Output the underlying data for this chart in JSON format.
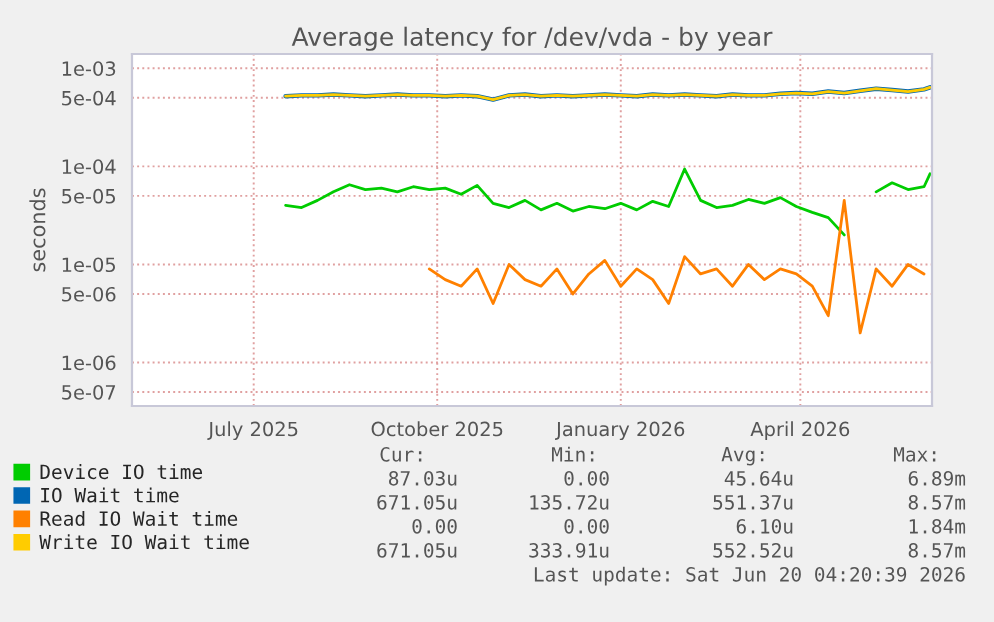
{
  "chart_data": {
    "type": "line",
    "title": "Average latency for /dev/vda - by year",
    "ylabel": "seconds",
    "x": [
      "2025-07-17",
      "2025-07-25",
      "2025-08-02",
      "2025-08-10",
      "2025-08-18",
      "2025-08-26",
      "2025-09-03",
      "2025-09-11",
      "2025-09-19",
      "2025-09-27",
      "2025-10-05",
      "2025-10-13",
      "2025-10-21",
      "2025-10-29",
      "2025-11-06",
      "2025-11-14",
      "2025-11-22",
      "2025-11-30",
      "2025-12-08",
      "2025-12-16",
      "2025-12-24",
      "2026-01-01",
      "2026-01-09",
      "2026-01-17",
      "2026-01-25",
      "2026-02-02",
      "2026-02-10",
      "2026-02-18",
      "2026-02-26",
      "2026-03-06",
      "2026-03-14",
      "2026-03-22",
      "2026-03-30",
      "2026-04-07",
      "2026-04-15",
      "2026-04-23",
      "2026-05-01",
      "2026-05-09",
      "2026-05-17",
      "2026-05-25",
      "2026-06-02",
      "2026-06-05"
    ],
    "series": [
      {
        "name": "Device IO time",
        "color": "#00cc00",
        "values": [
          4e-05,
          3.8e-05,
          4.5e-05,
          5.5e-05,
          6.5e-05,
          5.8e-05,
          6e-05,
          5.5e-05,
          6.2e-05,
          5.8e-05,
          6e-05,
          5.2e-05,
          6.4e-05,
          4.2e-05,
          3.8e-05,
          4.5e-05,
          3.6e-05,
          4.2e-05,
          3.5e-05,
          3.9e-05,
          3.7e-05,
          4.2e-05,
          3.6e-05,
          4.4e-05,
          3.9e-05,
          9.4e-05,
          4.5e-05,
          3.8e-05,
          4e-05,
          4.6e-05,
          4.2e-05,
          4.8e-05,
          3.9e-05,
          3.4e-05,
          3e-05,
          2e-05,
          null,
          5.5e-05,
          6.8e-05,
          5.8e-05,
          6.2e-05,
          8.4e-05
        ]
      },
      {
        "name": "IO Wait time",
        "color": "#0066b3",
        "values": [
          0.00052,
          0.00053,
          0.00053,
          0.00054,
          0.00053,
          0.00052,
          0.00053,
          0.00054,
          0.00053,
          0.00053,
          0.00052,
          0.00053,
          0.00052,
          0.00048,
          0.00053,
          0.00054,
          0.00052,
          0.00053,
          0.00052,
          0.00053,
          0.00054,
          0.00053,
          0.00052,
          0.00054,
          0.00053,
          0.00054,
          0.00053,
          0.00052,
          0.00054,
          0.00053,
          0.00053,
          0.00055,
          0.00056,
          0.00055,
          0.00058,
          0.00056,
          0.00059,
          0.00062,
          0.0006,
          0.00058,
          0.00061,
          0.00064
        ]
      },
      {
        "name": "Read IO Wait time",
        "color": "#ff8000",
        "values": [
          null,
          null,
          null,
          null,
          null,
          null,
          null,
          null,
          null,
          9e-06,
          7e-06,
          6e-06,
          9e-06,
          4e-06,
          1e-05,
          7e-06,
          6e-06,
          9e-06,
          5e-06,
          8e-06,
          1.1e-05,
          6e-06,
          9e-06,
          7e-06,
          4e-06,
          1.2e-05,
          8e-06,
          9e-06,
          6e-06,
          1e-05,
          7e-06,
          9e-06,
          8e-06,
          6e-06,
          3e-06,
          4.5e-05,
          2e-06,
          9e-06,
          6e-06,
          1e-05,
          8e-06,
          null
        ]
      },
      {
        "name": "Write IO Wait time",
        "color": "#ffcc00",
        "values": [
          0.00052,
          0.00053,
          0.00053,
          0.00054,
          0.00053,
          0.00052,
          0.00053,
          0.00054,
          0.00053,
          0.00053,
          0.00052,
          0.00053,
          0.00052,
          0.00048,
          0.00053,
          0.00054,
          0.00052,
          0.00053,
          0.00052,
          0.00053,
          0.00054,
          0.00053,
          0.00052,
          0.00054,
          0.00053,
          0.00054,
          0.00053,
          0.00052,
          0.00054,
          0.00053,
          0.00053,
          0.00055,
          0.00056,
          0.00055,
          0.00058,
          0.00056,
          0.00059,
          0.00062,
          0.0006,
          0.00058,
          0.00061,
          0.00064
        ]
      }
    ],
    "log": "y",
    "ylim": [
      3.6e-07,
      0.0014
    ],
    "yticks": [
      {
        "value": 5e-07,
        "label": "5e-07"
      },
      {
        "value": 1e-06,
        "label": "1e-06"
      },
      {
        "value": 5e-06,
        "label": "5e-06"
      },
      {
        "value": 1e-05,
        "label": "1e-05"
      },
      {
        "value": 5e-05,
        "label": "5e-05"
      },
      {
        "value": 0.0001,
        "label": "1e-04"
      },
      {
        "value": 0.0005,
        "label": "5e-04"
      },
      {
        "value": 0.001,
        "label": "1e-03"
      }
    ],
    "xlim": [
      "2025-05-01",
      "2026-06-06"
    ],
    "xticks": [
      {
        "value": "2025-07-01",
        "label": "July 2025"
      },
      {
        "value": "2025-10-01",
        "label": "October 2025"
      },
      {
        "value": "2026-01-01",
        "label": "January 2026"
      },
      {
        "value": "2026-04-01",
        "label": "April 2026"
      }
    ],
    "grid": true,
    "legend": "bottom",
    "marker": "none",
    "line_style": "solid",
    "annotations": [
      "Cur:",
      "Min:",
      "Avg:",
      "Max:",
      "87.03u",
      "0.00",
      "45.64u",
      "6.89m",
      "671.05u",
      "135.72u",
      "551.37u",
      "8.57m",
      "0.00",
      "0.00",
      "6.10u",
      "1.84m",
      "671.05u",
      "333.91u",
      "552.52u",
      "8.57m",
      "Last update: Sat Jun 20 04:20:39 2026"
    ]
  }
}
